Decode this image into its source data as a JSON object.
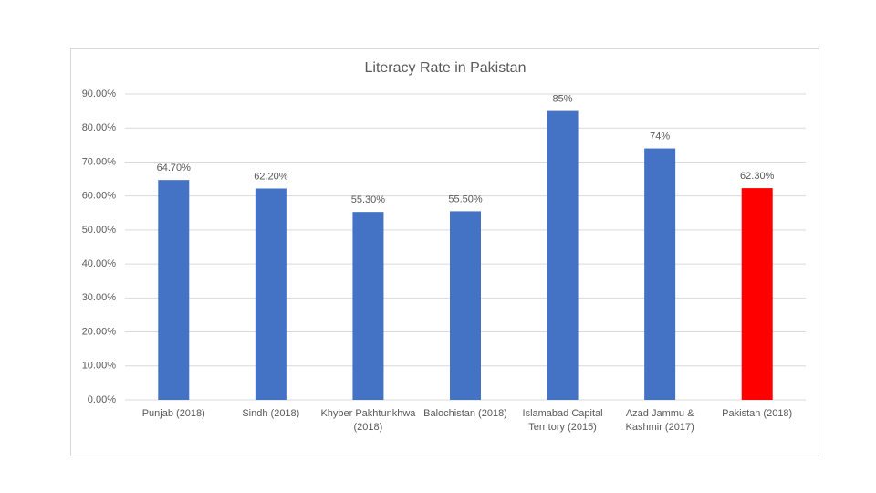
{
  "chart_data": {
    "type": "bar",
    "title": "Literacy Rate in Pakistan",
    "categories": [
      "Punjab (2018)",
      "Sindh (2018)",
      "Khyber Pakhtunkhwa (2018)",
      "Balochistan (2018)",
      "Islamabad Capital Territory (2015)",
      "Azad Jammu & Kashmir (2017)",
      "Pakistan (2018)"
    ],
    "values": [
      64.7,
      62.2,
      55.3,
      55.5,
      85,
      74,
      62.3
    ],
    "value_labels": [
      "64.70%",
      "62.20%",
      "55.30%",
      "55.50%",
      "85%",
      "74%",
      "62.30%"
    ],
    "colors": [
      "#4472c4",
      "#4472c4",
      "#4472c4",
      "#4472c4",
      "#4472c4",
      "#4472c4",
      "#ff0000"
    ],
    "ylim": [
      0,
      90
    ],
    "yticks": [
      {
        "value": 0,
        "label": "0.00%"
      },
      {
        "value": 10,
        "label": "10.00%"
      },
      {
        "value": 20,
        "label": "20.00%"
      },
      {
        "value": 30,
        "label": "30.00%"
      },
      {
        "value": 40,
        "label": "40.00%"
      },
      {
        "value": 50,
        "label": "50.00%"
      },
      {
        "value": 60,
        "label": "60.00%"
      },
      {
        "value": 70,
        "label": "70.00%"
      },
      {
        "value": 80,
        "label": "80.00%"
      },
      {
        "value": 90,
        "label": "90.00%"
      }
    ],
    "grid": true
  }
}
